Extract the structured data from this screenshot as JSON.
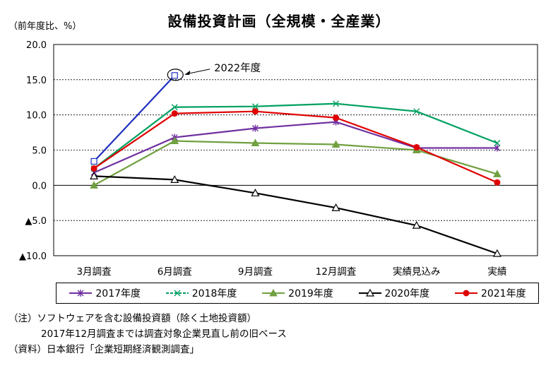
{
  "title": "設備投資計画（全規模・全産業）",
  "unit_label": "（前年度比、%）",
  "notes": [
    "（注）ソフトウェアを含む設備投資額（除く土地投資額）",
    "2017年12月調査までは調査対象企業見直し前の旧ベース",
    "（資料）日本銀行「企業短期経済観測調査」"
  ],
  "chart_data": {
    "type": "line",
    "title": "設備投資計画（全規模・全産業）",
    "ylabel": "（前年度比、%）",
    "xlabel": "",
    "categories": [
      "3月調査",
      "6月調査",
      "9月調査",
      "12月調査",
      "実績見込み",
      "実績"
    ],
    "ylim": [
      -10,
      20
    ],
    "yticks": [
      20,
      15,
      10,
      5,
      0,
      -5,
      -10
    ],
    "ytick_labels": [
      "20.0",
      "15.0",
      "10.0",
      "5.0",
      "0.0",
      "▲5.0",
      "▲10.0"
    ],
    "grid": "horizontal-dashed",
    "legend_position": "bottom",
    "series": [
      {
        "name": "2017年度",
        "color": "#7030a0",
        "marker": "star",
        "values": [
          1.8,
          6.8,
          8.1,
          9.0,
          5.3,
          5.3
        ]
      },
      {
        "name": "2018年度",
        "color": "#00a060",
        "marker": "x",
        "values": [
          2.4,
          11.1,
          11.2,
          11.6,
          10.5,
          6.0
        ]
      },
      {
        "name": "2019年度",
        "color": "#70a040",
        "marker": "triangle",
        "values": [
          0.0,
          6.3,
          6.0,
          5.8,
          5.0,
          1.6
        ]
      },
      {
        "name": "2020年度",
        "color": "#000000",
        "marker": "triangle-open",
        "values": [
          1.3,
          0.8,
          -1.1,
          -3.2,
          -5.7,
          -9.7
        ]
      },
      {
        "name": "2021年度",
        "color": "#e00000",
        "marker": "circle",
        "values": [
          2.4,
          10.2,
          10.5,
          9.6,
          5.4,
          0.4
        ]
      },
      {
        "name": "2022年度",
        "color": "#1f2fbf",
        "marker": "square-open",
        "values": [
          3.4,
          15.6,
          null,
          null,
          null,
          null
        ]
      }
    ],
    "annotations": [
      {
        "text": "2022年度",
        "series": "2022年度",
        "category": "6月調査"
      }
    ]
  }
}
